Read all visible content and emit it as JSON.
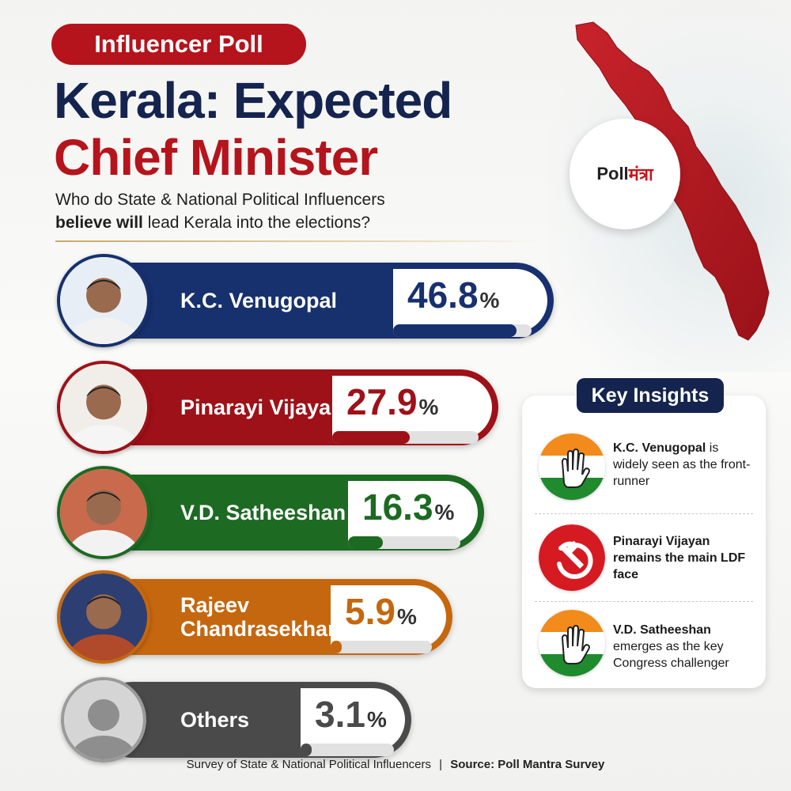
{
  "header": {
    "tag": "Influencer Poll",
    "title_line1": "Kerala: Expected",
    "title_line2": "Chief Minister",
    "subtitle_line1": "Who do State & National Political Influencers",
    "subtitle_bold": "believe will",
    "subtitle_rest": " lead Kerala into the elections?"
  },
  "logo": {
    "poll": "Poll",
    "mantra": "मंत्रा"
  },
  "chart_data": {
    "type": "bar",
    "categories": [
      "K.C. Venugopal",
      "Pinarayi Vijayan",
      "V.D. Satheeshan",
      "Rajeev Chandrasekhar",
      "Others"
    ],
    "values": [
      46.8,
      27.9,
      16.3,
      5.9,
      3.1
    ],
    "unit": "%",
    "ylim": [
      0,
      50
    ],
    "colors": [
      "#17306e",
      "#9e1118",
      "#1d6a22",
      "#c5670e",
      "#4a4a4a"
    ]
  },
  "candidates": [
    {
      "name_line1": "K.C. Venugopal",
      "name_line2": "",
      "pct": "46.8",
      "sign": "%"
    },
    {
      "name_line1": "Pinarayi Vijayan",
      "name_line2": "",
      "pct": "27.9",
      "sign": "%"
    },
    {
      "name_line1": "V.D. Satheeshan",
      "name_line2": "",
      "pct": "16.3",
      "sign": "%"
    },
    {
      "name_line1": "Rajeev",
      "name_line2": "Chandrasekhar",
      "pct": "5.9",
      "sign": "%"
    },
    {
      "name_line1": "Others",
      "name_line2": "",
      "pct": "3.1",
      "sign": "%"
    }
  ],
  "insights": {
    "title": "Key Insights",
    "items": [
      {
        "bold": "K.C. Venugopal",
        "text": " is widely seen as the front-runner",
        "icon": "congress-hand-icon"
      },
      {
        "bold": "Pinarayi Vijayan remains the main LDF face",
        "text": "",
        "icon": "hammer-sickle-icon"
      },
      {
        "bold": "V.D. Satheeshan",
        "text": " emerges as the key Congress challenger",
        "icon": "congress-hand-icon"
      }
    ]
  },
  "footer": {
    "left": "Survey of State & National Political Influencers",
    "sep": "|",
    "right": "Source: Poll Mantra Survey"
  }
}
